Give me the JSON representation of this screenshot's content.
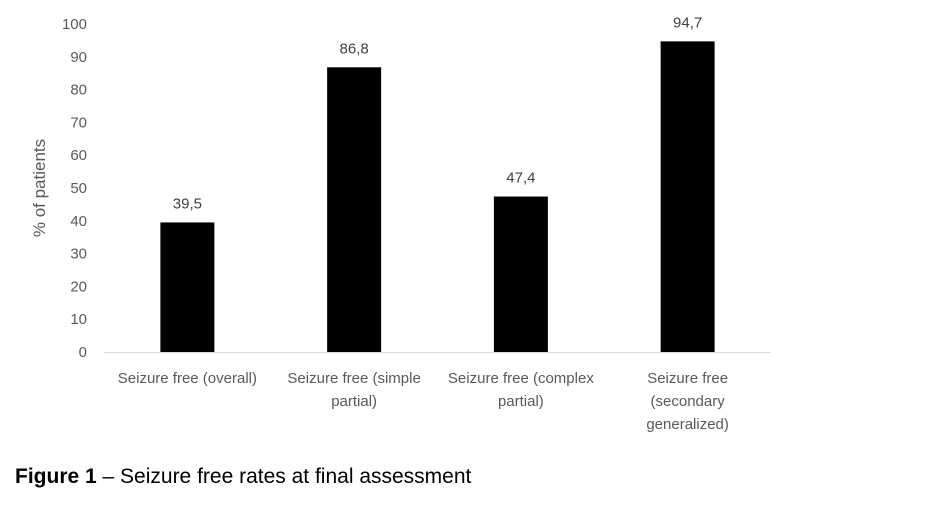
{
  "chart_data": {
    "type": "bar",
    "categories": [
      [
        "Seizure free (overall)"
      ],
      [
        "Seizure free (simple",
        "partial)"
      ],
      [
        "Seizure free (complex",
        "partial)"
      ],
      [
        "Seizure free",
        "(secondary",
        "generalized)"
      ]
    ],
    "values": [
      39.5,
      86.8,
      47.4,
      94.7
    ],
    "data_labels": [
      "39,5",
      "86,8",
      "47,4",
      "94,7"
    ],
    "ylabel": "% of patients",
    "ylim": [
      0,
      100
    ],
    "yticks": [
      0,
      10,
      20,
      30,
      40,
      50,
      60,
      70,
      80,
      90,
      100
    ],
    "grid": false,
    "legend": "none",
    "bar_color": "#000000"
  },
  "caption": {
    "label": "Figure 1",
    "text": " – Seizure free rates at final assessment"
  }
}
